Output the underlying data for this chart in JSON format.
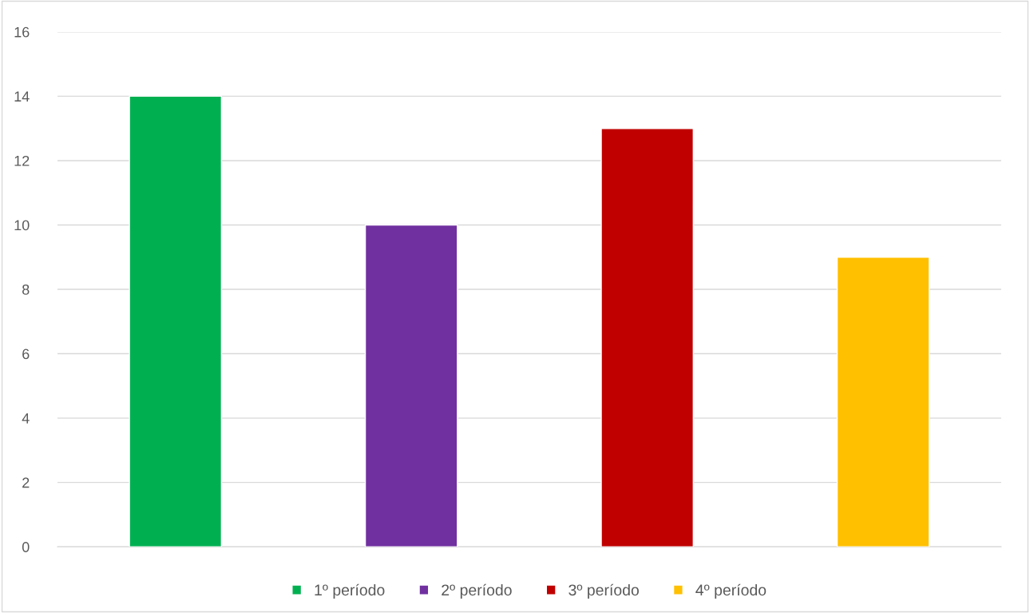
{
  "chart_data": {
    "type": "bar",
    "categories": [
      null
    ],
    "series": [
      {
        "name": "1º período",
        "color": "#00b050",
        "values": [
          14
        ]
      },
      {
        "name": "2º período",
        "color": "#7030a0",
        "values": [
          10
        ]
      },
      {
        "name": "3º período",
        "color": "#c00000",
        "values": [
          13
        ]
      },
      {
        "name": "4º período",
        "color": "#ffc000",
        "values": [
          9
        ]
      }
    ],
    "ylim": [
      0,
      16
    ],
    "yticks": [
      0,
      2,
      4,
      6,
      8,
      10,
      12,
      14,
      16
    ],
    "grid": "y",
    "legend": "bottom"
  }
}
